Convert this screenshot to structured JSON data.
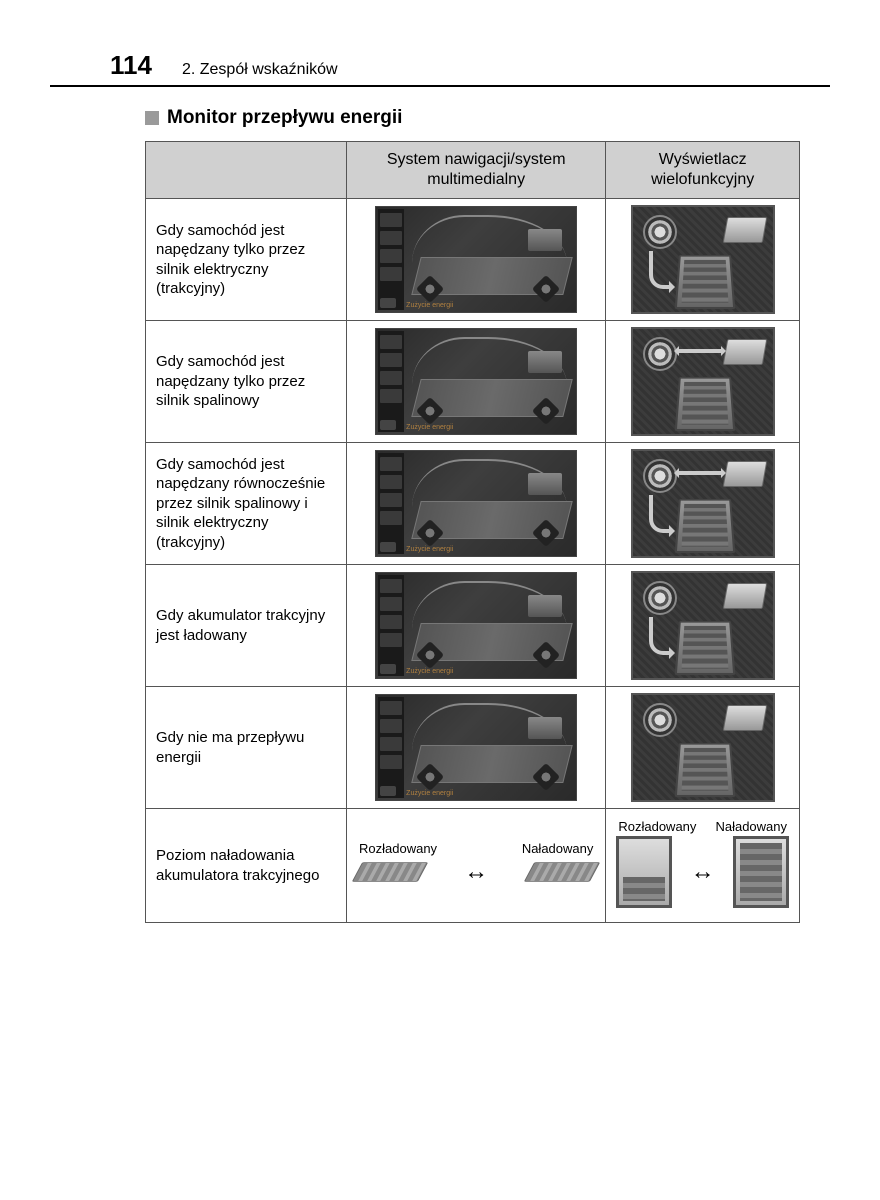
{
  "header": {
    "page_number": "114",
    "chapter": "2. Zespół wskaźników"
  },
  "section": {
    "title": "Monitor przepływu energii"
  },
  "table": {
    "columns": {
      "blank": "",
      "nav": "System nawigacji/system multimedialny",
      "mfd": "Wyświetlacz wielofunkcyjny"
    },
    "rows": [
      {
        "desc": "Gdy samochód jest napędzany tylko przez silnik elektryczny (trakcyjny)"
      },
      {
        "desc": "Gdy samochód jest napędzany tylko przez silnik spalinowy"
      },
      {
        "desc": "Gdy samochód jest napędzany równocześnie przez silnik spalinowy i silnik elektryczny (trakcyjny)"
      },
      {
        "desc": "Gdy akumulator trakcyjny jest ładowany"
      },
      {
        "desc": "Gdy nie ma przepływu energii"
      }
    ],
    "last_row": {
      "desc": "Poziom naładowania akumulatora trakcyjnego",
      "labels": {
        "low": "Rozładowany",
        "high": "Naładowany"
      },
      "arrow": "↔"
    }
  },
  "nav_caption": "Zużycie energii"
}
